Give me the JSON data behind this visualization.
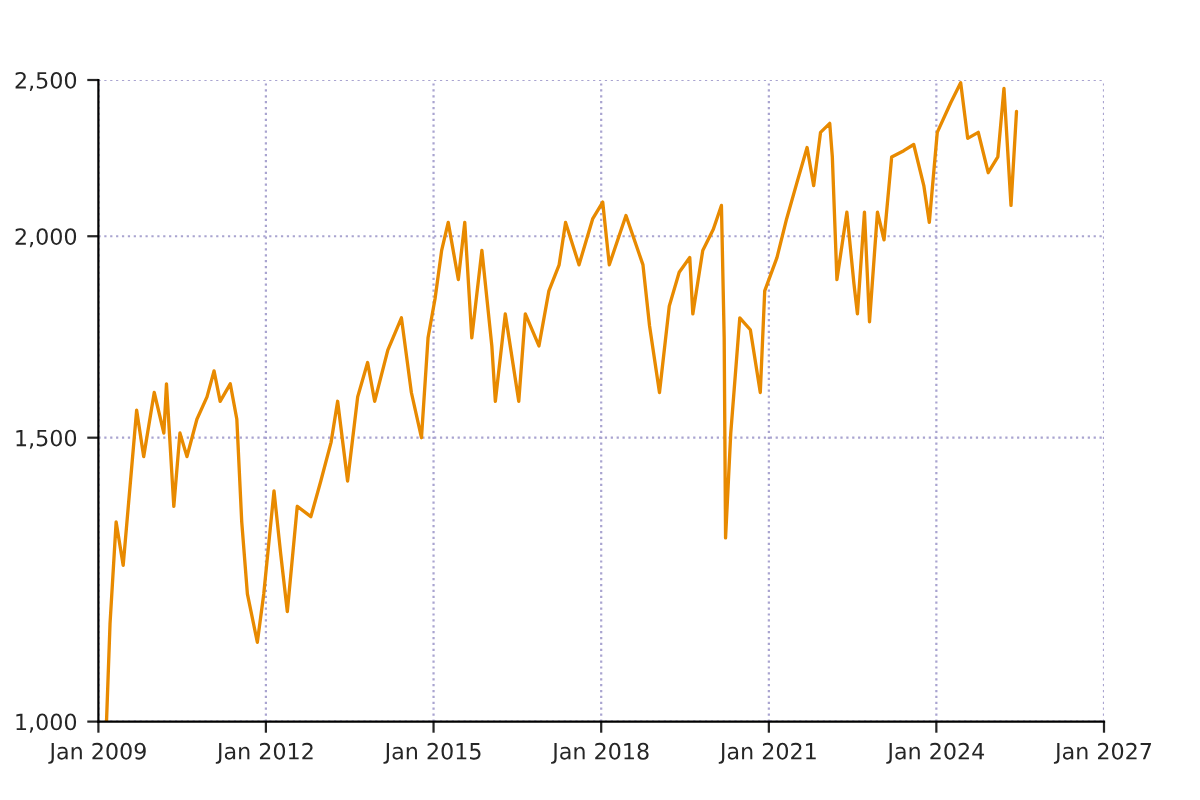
{
  "chart_data": {
    "type": "line",
    "log": true,
    "grid": true,
    "line_style": "solid",
    "xlim": [
      "2009-01",
      "2027-01"
    ],
    "xticks": [
      {
        "value": "2009-01",
        "label": "Jan 2009"
      },
      {
        "value": "2012-01",
        "label": "Jan 2012"
      },
      {
        "value": "2015-01",
        "label": "Jan 2015"
      },
      {
        "value": "2018-01",
        "label": "Jan 2018"
      },
      {
        "value": "2021-01",
        "label": "Jan 2021"
      },
      {
        "value": "2024-01",
        "label": "Jan 2024"
      },
      {
        "value": "2027-01",
        "label": "Jan 2027"
      }
    ],
    "ylim": [
      1000,
      2500
    ],
    "yticks": [
      {
        "value": 1000,
        "label": "1,000"
      },
      {
        "value": 1500,
        "label": "1,500"
      },
      {
        "value": 2000,
        "label": "2,000"
      },
      {
        "value": 2500,
        "label": "2,500"
      }
    ],
    "series": [
      {
        "color": "#e88a00",
        "x": [
          "2009-02-23",
          "2009-03-18",
          "2009-04-27",
          "2009-06-12",
          "2009-07-27",
          "2009-09-08",
          "2009-10-24",
          "2010-01-01",
          "2010-03-05",
          "2010-03-22",
          "2010-05-09",
          "2010-06-18",
          "2010-08-03",
          "2010-10-07",
          "2010-12-12",
          "2011-01-27",
          "2011-03-08",
          "2011-05-13",
          "2011-06-25",
          "2011-07-27",
          "2011-09-02",
          "2011-11-06",
          "2011-12-18",
          "2012-02-23",
          "2012-04-07",
          "2012-05-20",
          "2012-07-24",
          "2012-10-21",
          "2012-12-25",
          "2013-03-02",
          "2013-04-14",
          "2013-06-18",
          "2013-08-23",
          "2013-10-27",
          "2013-12-12",
          "2014-03-08",
          "2014-06-05",
          "2014-08-09",
          "2014-10-14",
          "2014-11-26",
          "2015-01-11",
          "2015-02-23",
          "2015-04-07",
          "2015-06-12",
          "2015-07-24",
          "2015-09-08",
          "2015-11-13",
          "2016-01-17",
          "2016-02-09",
          "2016-04-14",
          "2016-07-11",
          "2016-08-23",
          "2016-11-20",
          "2017-01-24",
          "2017-04-01",
          "2017-05-13",
          "2017-08-09",
          "2017-11-06",
          "2018-01-11",
          "2018-02-23",
          "2018-06-12",
          "2018-10-01",
          "2018-11-13",
          "2019-01-17",
          "2019-03-22",
          "2019-05-26",
          "2019-08-03",
          "2019-08-23",
          "2019-10-27",
          "2020-01-04",
          "2020-02-26",
          "2020-03-15",
          "2020-03-24",
          "2020-04-27",
          "2020-06-25",
          "2020-09-02",
          "2020-11-06",
          "2020-12-05",
          "2021-02-23",
          "2021-04-27",
          "2021-07-04",
          "2021-09-08",
          "2021-10-21",
          "2021-12-05",
          "2022-02-03",
          "2022-02-20",
          "2022-03-22",
          "2022-05-26",
          "2022-07-11",
          "2022-08-03",
          "2022-09-18",
          "2022-10-21",
          "2022-12-12",
          "2023-01-24",
          "2023-03-15",
          "2023-06-02",
          "2023-08-06",
          "2023-10-11",
          "2023-11-16",
          "2024-01-07",
          "2024-04-04",
          "2024-06-08",
          "2024-07-24",
          "2024-10-01",
          "2024-12-05",
          "2025-02-06",
          "2025-03-18",
          "2025-05-03",
          "2025-06-08"
        ],
        "values": [
          1000,
          1150,
          1330,
          1250,
          1400,
          1560,
          1460,
          1600,
          1510,
          1620,
          1360,
          1510,
          1460,
          1540,
          1590,
          1650,
          1580,
          1620,
          1540,
          1330,
          1200,
          1120,
          1200,
          1390,
          1270,
          1170,
          1360,
          1340,
          1410,
          1490,
          1580,
          1410,
          1590,
          1670,
          1580,
          1700,
          1780,
          1600,
          1500,
          1730,
          1830,
          1960,
          2040,
          1880,
          2040,
          1730,
          1960,
          1710,
          1580,
          1790,
          1580,
          1790,
          1710,
          1850,
          1920,
          2040,
          1920,
          2050,
          2100,
          1920,
          2060,
          1920,
          1760,
          1600,
          1810,
          1900,
          1940,
          1790,
          1960,
          2020,
          2090,
          1730,
          1300,
          1510,
          1780,
          1750,
          1600,
          1850,
          1940,
          2050,
          2160,
          2270,
          2150,
          2320,
          2350,
          2240,
          1880,
          2070,
          1870,
          1790,
          2070,
          1770,
          2070,
          1990,
          2240,
          2260,
          2280,
          2150,
          2040,
          2320,
          2420,
          2490,
          2300,
          2320,
          2190,
          2240,
          2470,
          2090,
          2390
        ]
      }
    ]
  }
}
